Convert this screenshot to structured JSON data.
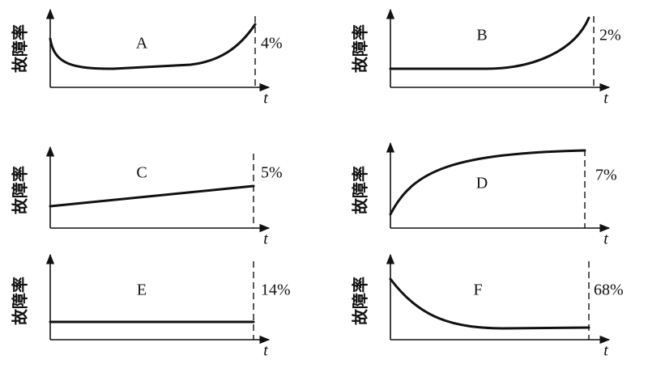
{
  "panels": [
    {
      "label": "A",
      "y_label": "故障率",
      "x_label": "t",
      "percent": "4%"
    },
    {
      "label": "B",
      "y_label": "故障率",
      "x_label": "t",
      "percent": "2%"
    },
    {
      "label": "C",
      "y_label": "故障率",
      "x_label": "t",
      "percent": "5%"
    },
    {
      "label": "D",
      "y_label": "故障率",
      "x_label": "t",
      "percent": "7%"
    },
    {
      "label": "E",
      "y_label": "故障率",
      "x_label": "t",
      "percent": "14%"
    },
    {
      "label": "F",
      "y_label": "故障率",
      "x_label": "t",
      "percent": "68%"
    }
  ]
}
